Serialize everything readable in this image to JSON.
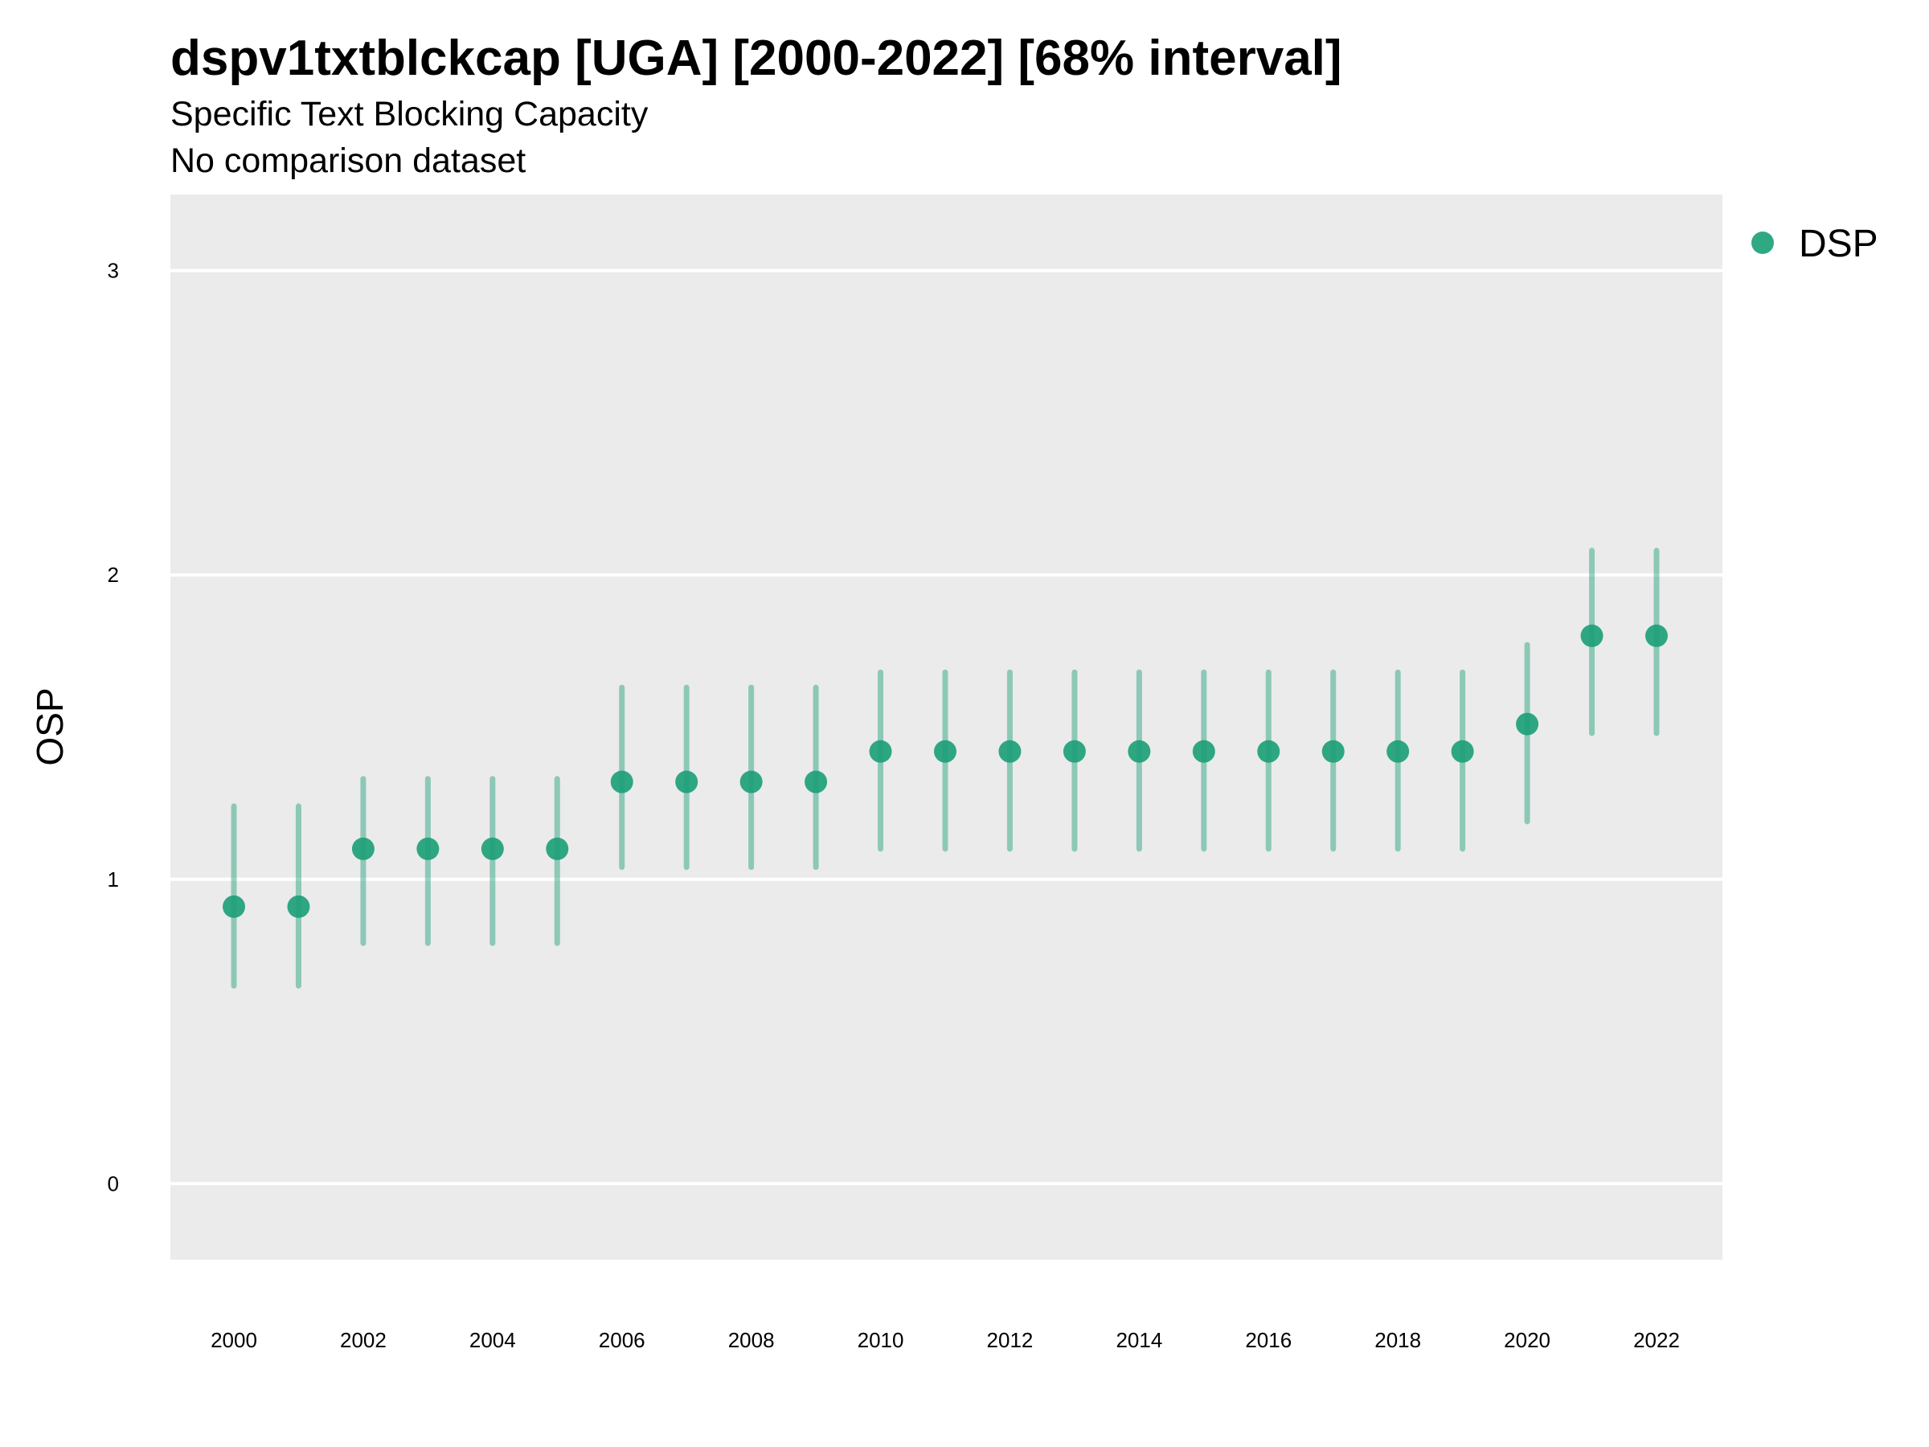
{
  "chart_data": {
    "type": "scatter",
    "title": "dspv1txtblckcap [UGA] [2000-2022] [68% interval]",
    "subtitle": "Specific Text Blocking Capacity",
    "subtitle2": "No comparison dataset",
    "xlabel": "",
    "ylabel": "OSP",
    "ylim": [
      -0.25,
      3.25
    ],
    "xlim": [
      1999,
      2023
    ],
    "y_ticks": [
      "0",
      "1",
      "2",
      "3"
    ],
    "x_ticks": [
      "2000",
      "2002",
      "2004",
      "2006",
      "2008",
      "2010",
      "2012",
      "2014",
      "2016",
      "2018",
      "2020",
      "2022"
    ],
    "grid": true,
    "legend_position": "top-right",
    "series": [
      {
        "name": "DSP",
        "color": "#1b9e77",
        "x": [
          2000,
          2001,
          2002,
          2003,
          2004,
          2005,
          2006,
          2007,
          2008,
          2009,
          2010,
          2011,
          2012,
          2013,
          2014,
          2015,
          2016,
          2017,
          2018,
          2019,
          2020,
          2021,
          2022
        ],
        "y": [
          0.91,
          0.91,
          1.1,
          1.1,
          1.1,
          1.1,
          1.32,
          1.32,
          1.32,
          1.32,
          1.42,
          1.42,
          1.42,
          1.42,
          1.42,
          1.42,
          1.42,
          1.42,
          1.42,
          1.42,
          1.51,
          1.8,
          1.8
        ],
        "lower": [
          0.65,
          0.65,
          0.79,
          0.79,
          0.79,
          0.79,
          1.04,
          1.04,
          1.04,
          1.04,
          1.1,
          1.1,
          1.1,
          1.1,
          1.1,
          1.1,
          1.1,
          1.1,
          1.1,
          1.1,
          1.19,
          1.48,
          1.48
        ],
        "upper": [
          1.24,
          1.24,
          1.33,
          1.33,
          1.33,
          1.33,
          1.63,
          1.63,
          1.63,
          1.63,
          1.68,
          1.68,
          1.68,
          1.68,
          1.68,
          1.68,
          1.68,
          1.68,
          1.68,
          1.68,
          1.77,
          2.08,
          2.08
        ]
      }
    ]
  },
  "colors": {
    "panel_background": "#ebebeb",
    "gridline": "#ffffff",
    "point": "#1b9e77"
  }
}
